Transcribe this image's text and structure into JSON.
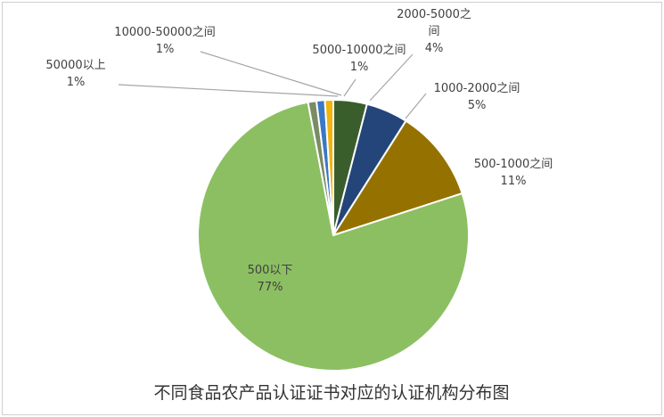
{
  "chart_data": {
    "type": "pie",
    "title": "不同食品农产品认证证书对应的认证机构分布图",
    "slices": [
      {
        "label": "2000-5000之间",
        "value": 4,
        "text": "4%",
        "color": "#3a5e2b"
      },
      {
        "label": "1000-2000之间",
        "value": 5,
        "text": "5%",
        "color": "#24457a"
      },
      {
        "label": "500-1000之间",
        "value": 11,
        "text": "11%",
        "color": "#957200"
      },
      {
        "label": "500以下",
        "value": 77,
        "text": "77%",
        "color": "#8cbf62"
      },
      {
        "label": "50000以上",
        "value": 1,
        "text": "1%",
        "color": "#7a8c63"
      },
      {
        "label": "10000-50000之间",
        "value": 1,
        "text": "1%",
        "color": "#3b78c6"
      },
      {
        "label": "5000-10000之间",
        "value": 1,
        "text": "1%",
        "color": "#f2b40c"
      }
    ]
  }
}
